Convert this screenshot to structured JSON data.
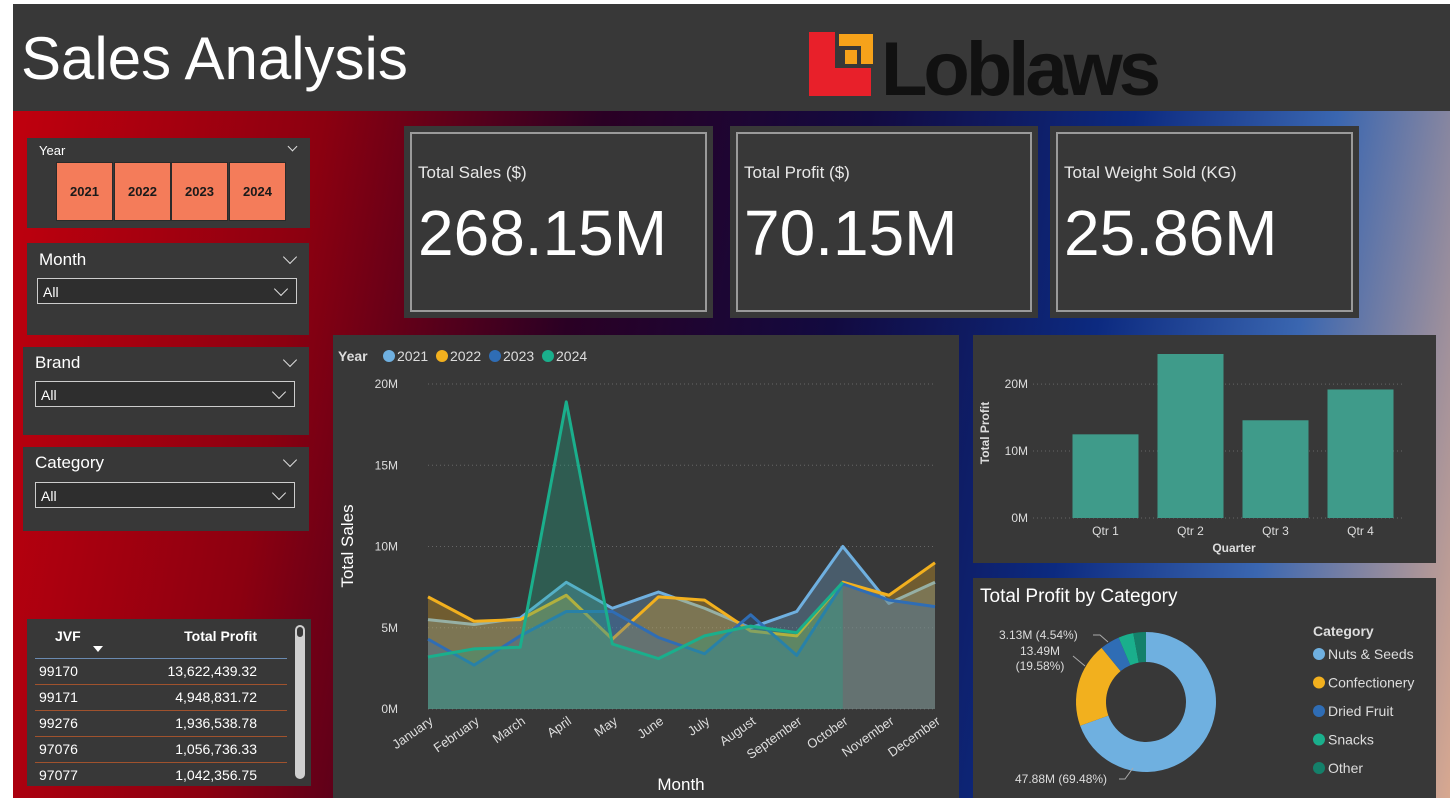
{
  "header": {
    "title": "Sales Analysis",
    "logo": "Loblaws"
  },
  "slicers": [
    {
      "title": "Year",
      "options": [
        "2021",
        "2022",
        "2023",
        "2024"
      ]
    },
    {
      "title": "Month",
      "value": "All"
    },
    {
      "title": "Brand",
      "value": "All"
    },
    {
      "title": "Category",
      "value": "All"
    }
  ],
  "kpis": [
    {
      "label": "Total Sales ($)",
      "value": "268.15M"
    },
    {
      "label": "Total Profit ($)",
      "value": "70.15M"
    },
    {
      "label": "Total Weight Sold (KG)",
      "value": "25.86M"
    }
  ],
  "table": {
    "columns": [
      "JVF",
      "Total Profit"
    ],
    "rows": [
      [
        "99170",
        "13,622,439.32"
      ],
      [
        "99171",
        "4,948,831.72"
      ],
      [
        "99276",
        "1,936,538.78"
      ],
      [
        "97076",
        "1,056,736.33"
      ],
      [
        "97077",
        "1,042,356.75"
      ]
    ]
  },
  "chart_data": [
    {
      "type": "area",
      "legend_title": "Year",
      "x_label": "Month",
      "y_label": "Total Sales",
      "categories": [
        "January",
        "February",
        "March",
        "April",
        "May",
        "June",
        "July",
        "August",
        "September",
        "October",
        "November",
        "December"
      ],
      "series": [
        {
          "name": "2021",
          "color": "#6fb0e0",
          "values": [
            5500000,
            5200000,
            5600000,
            7800000,
            6200000,
            7200000,
            6200000,
            5000000,
            6000000,
            10000000,
            6500000,
            7800000
          ]
        },
        {
          "name": "2022",
          "color": "#f2b01e",
          "values": [
            6900000,
            5400000,
            5500000,
            7000000,
            4300000,
            6900000,
            6700000,
            4800000,
            4500000,
            7800000,
            7000000,
            9000000
          ]
        },
        {
          "name": "2023",
          "color": "#2f6db5",
          "values": [
            4300000,
            2700000,
            4500000,
            6000000,
            6000000,
            4400000,
            3400000,
            5800000,
            3300000,
            7700000,
            6700000,
            6300000
          ]
        },
        {
          "name": "2024",
          "color": "#1aaf8c",
          "values": [
            3200000,
            3700000,
            3800000,
            18900000,
            4000000,
            3100000,
            4500000,
            5100000,
            4700000,
            7800000,
            null,
            null
          ]
        }
      ],
      "ylim": [
        0,
        20000000
      ],
      "yticks": [
        {
          "value": 0,
          "label": "0M"
        },
        {
          "value": 5000000,
          "label": "5M"
        },
        {
          "value": 10000000,
          "label": "10M"
        },
        {
          "value": 15000000,
          "label": "15M"
        },
        {
          "value": 20000000,
          "label": "20M"
        }
      ],
      "grid": true
    },
    {
      "type": "bar",
      "x_label": "Quarter",
      "y_label": "Total Profit",
      "categories": [
        "Qtr 1",
        "Qtr 2",
        "Qtr 3",
        "Qtr 4"
      ],
      "values": [
        12500000,
        24500000,
        14600000,
        19200000
      ],
      "color": "#3f9b8a",
      "ylim": [
        0,
        24500000
      ],
      "yticks": [
        {
          "value": 0,
          "label": "0M"
        },
        {
          "value": 10000000,
          "label": "10M"
        },
        {
          "value": 20000000,
          "label": "20M"
        }
      ],
      "grid": true
    },
    {
      "type": "donut",
      "title": "Total Profit by Category",
      "legend_title": "Category",
      "categories": [
        "Nuts & Seeds",
        "Confectionery",
        "Dried Fruit",
        "Snacks",
        "Other"
      ],
      "values": [
        47880000,
        13490000,
        3130000,
        2400000,
        2010000
      ],
      "value_labels": [
        "47.88M (69.48%)",
        "13.49M (19.58%)",
        "3.13M (4.54%)",
        null,
        null
      ],
      "colors": [
        "#6fb0e0",
        "#f2b01e",
        "#2f6db5",
        "#1aaf8c",
        "#14806a"
      ]
    }
  ]
}
